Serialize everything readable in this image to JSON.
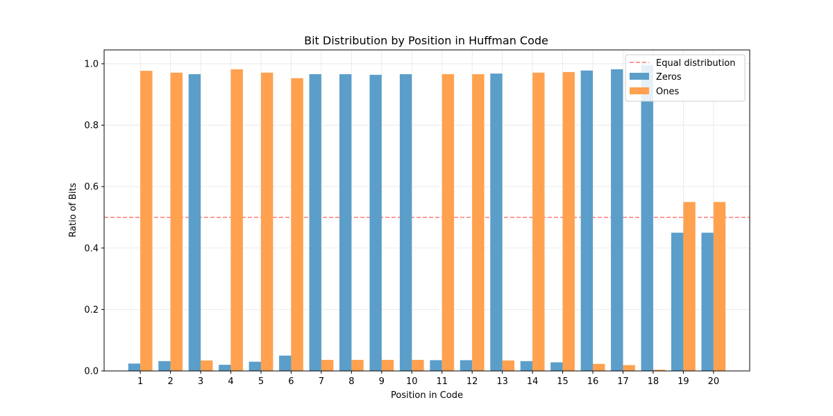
{
  "chart_data": {
    "type": "bar",
    "title": "Bit Distribution by Position in Huffman Code",
    "xlabel": "Position in Code",
    "ylabel": "Ratio of Bits",
    "categories": [
      "1",
      "2",
      "3",
      "4",
      "5",
      "6",
      "7",
      "8",
      "9",
      "10",
      "11",
      "12",
      "13",
      "14",
      "15",
      "16",
      "17",
      "18",
      "19",
      "20"
    ],
    "series": [
      {
        "name": "Zeros",
        "color": "#5b9ec9",
        "values": [
          0.024,
          0.032,
          0.966,
          0.02,
          0.03,
          0.05,
          0.966,
          0.966,
          0.964,
          0.966,
          0.035,
          0.035,
          0.968,
          0.032,
          0.028,
          0.978,
          0.982,
          0.996,
          0.45,
          0.45
        ]
      },
      {
        "name": "Ones",
        "color": "#ffa14f",
        "values": [
          0.977,
          0.971,
          0.034,
          0.982,
          0.971,
          0.953,
          0.036,
          0.036,
          0.036,
          0.036,
          0.966,
          0.966,
          0.034,
          0.971,
          0.973,
          0.023,
          0.019,
          0.004,
          0.55,
          0.55
        ]
      }
    ],
    "reference_line": {
      "name": "Equal distribution",
      "y": 0.5,
      "color": "#ff5555",
      "style": "dashed"
    },
    "ylim": [
      0.0,
      1.045
    ],
    "yticks": [
      "0.0",
      "0.2",
      "0.4",
      "0.6",
      "0.8",
      "1.0"
    ],
    "grid": true,
    "legend_position": "top-right"
  }
}
